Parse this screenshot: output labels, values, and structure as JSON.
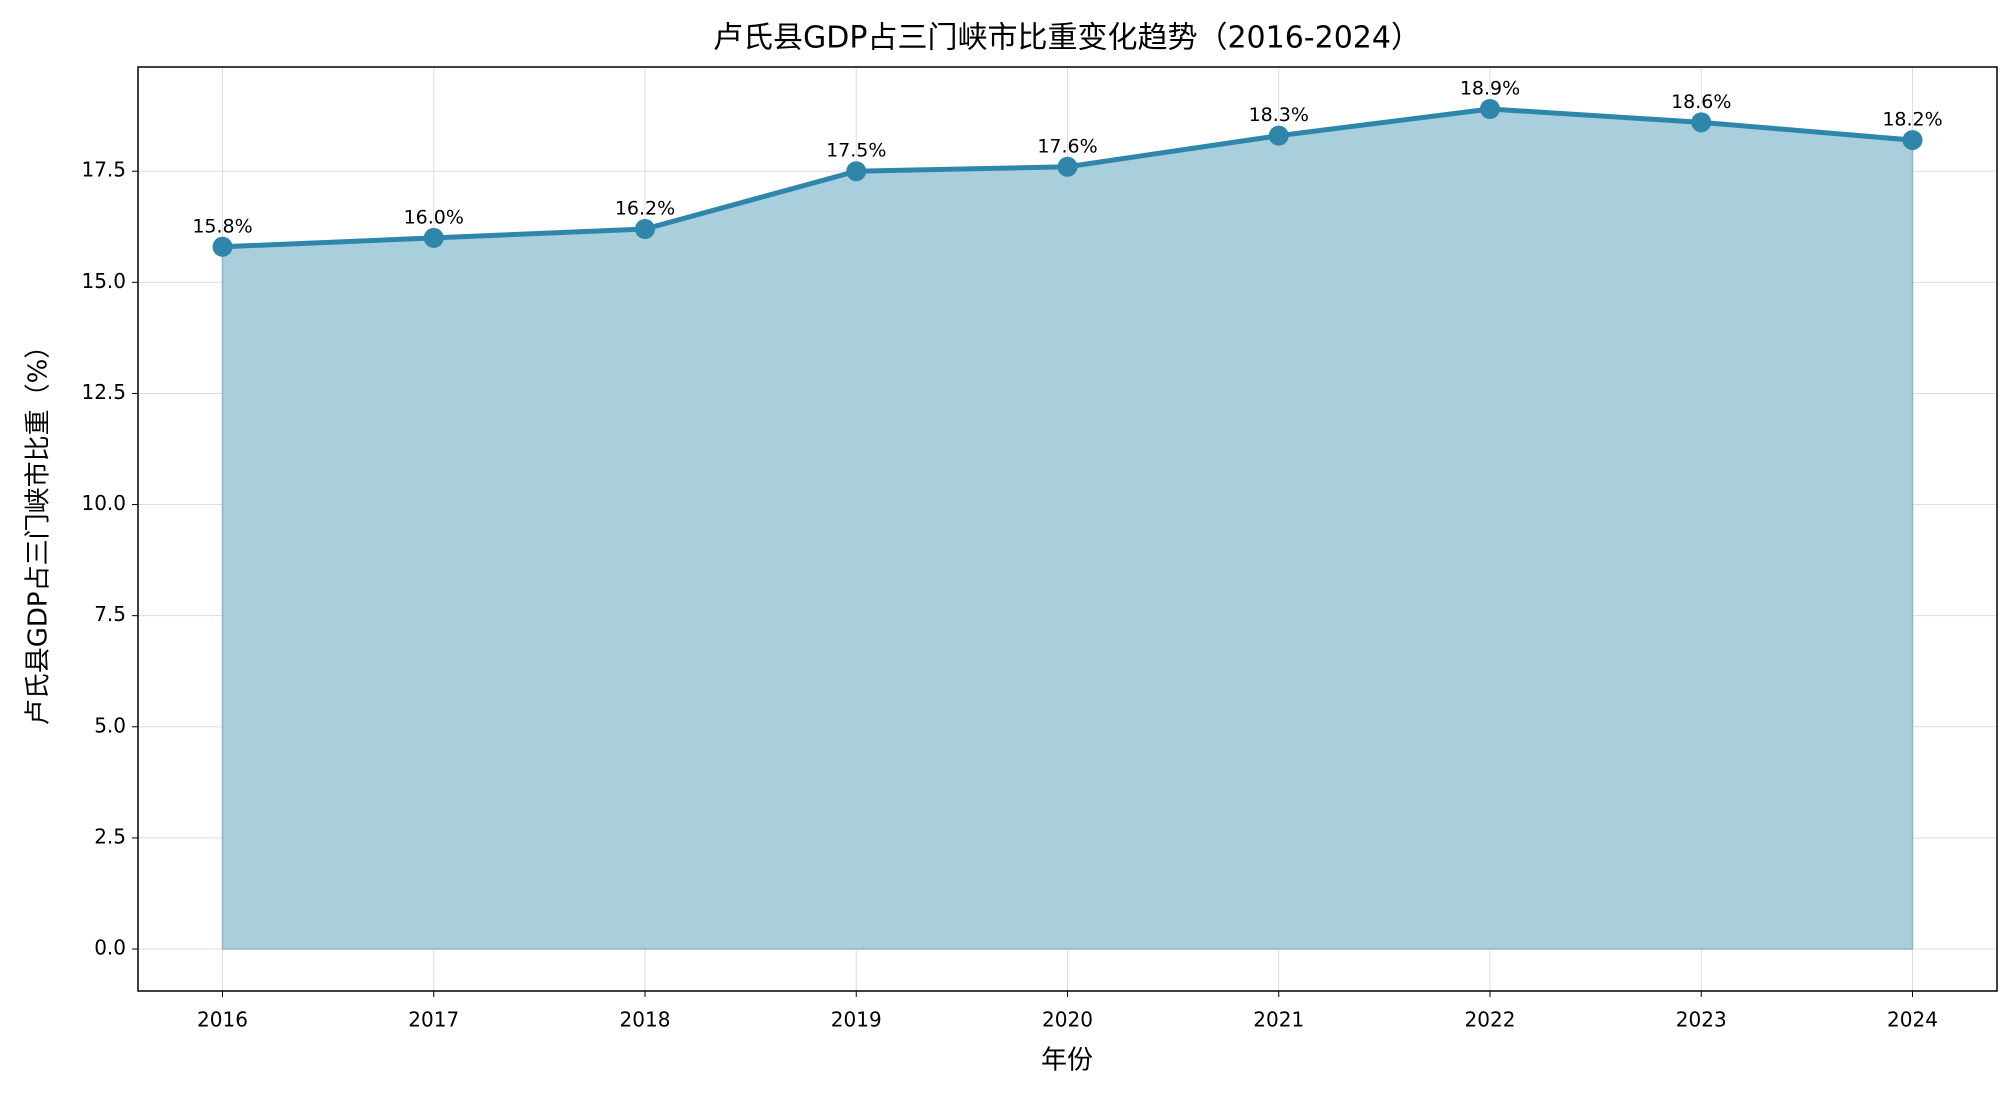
{
  "chart_data": {
    "type": "line",
    "title": "卢氏县GDP占三门峡市比重变化趋势（2016-2024）",
    "xlabel": "年份",
    "ylabel": "卢氏县GDP占三门峡市比重（%）",
    "x": [
      2016,
      2017,
      2018,
      2019,
      2020,
      2021,
      2022,
      2023,
      2024
    ],
    "series": [
      {
        "name": "比重",
        "color": "#2e86ab",
        "fill": "#a9cedc",
        "values": [
          15.8,
          16.0,
          16.2,
          17.5,
          17.6,
          18.3,
          18.9,
          18.6,
          18.2
        ],
        "value_labels": [
          "15.8%",
          "16.0%",
          "16.2%",
          "17.5%",
          "17.6%",
          "18.3%",
          "18.9%",
          "18.6%",
          "18.2%"
        ]
      }
    ],
    "xlim": [
      2015.6,
      2024.4
    ],
    "xticks": [
      2016,
      2017,
      2018,
      2019,
      2020,
      2021,
      2022,
      2023,
      2024
    ],
    "ylim": [
      -0.945,
      19.845
    ],
    "yticks": [
      {
        "value": 0,
        "label": "0.0"
      },
      2.5,
      {
        "value": 5,
        "label": "5.0"
      },
      7.5,
      {
        "value": 10,
        "label": "10.0"
      },
      12.5,
      {
        "value": 15,
        "label": "15.0"
      },
      17.5
    ],
    "grid": true,
    "area": true
  }
}
